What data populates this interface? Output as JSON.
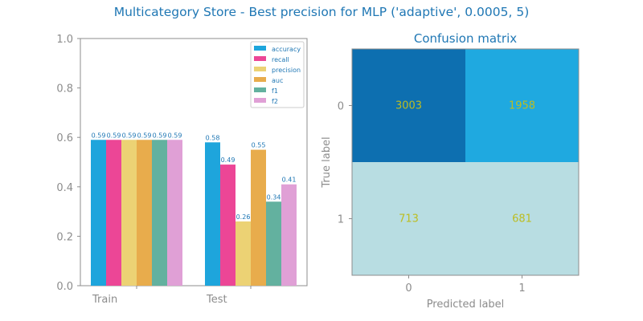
{
  "figure_title": "Multicategory Store - Best precision for MLP ('adaptive', 0.0005, 5)",
  "chart_data": [
    {
      "type": "bar",
      "categories": [
        "Train",
        "Test"
      ],
      "series": [
        {
          "name": "accuracy",
          "values": [
            0.59,
            0.58
          ],
          "labels": [
            "0.59",
            "0.58"
          ],
          "color": "#1ea5dc"
        },
        {
          "name": "recall",
          "values": [
            0.59,
            0.49
          ],
          "labels": [
            "0.59",
            "0.49"
          ],
          "color": "#ec4696"
        },
        {
          "name": "precision",
          "values": [
            0.59,
            0.26
          ],
          "labels": [
            "0.59",
            "0.26"
          ],
          "color": "#ecd274"
        },
        {
          "name": "auc",
          "values": [
            0.59,
            0.55
          ],
          "labels": [
            "0.59",
            "0.55"
          ],
          "color": "#e8ac4c"
        },
        {
          "name": "f1",
          "values": [
            0.59,
            0.34
          ],
          "labels": [
            "0.59",
            "0.34"
          ],
          "color": "#63b19f"
        },
        {
          "name": "f2",
          "values": [
            0.59,
            0.41
          ],
          "labels": [
            "0.59",
            "0.41"
          ],
          "color": "#e0a0d6"
        }
      ],
      "ylim": [
        0,
        1.0
      ],
      "yticks": [
        "0.0",
        "0.2",
        "0.4",
        "0.6",
        "0.8",
        "1.0"
      ],
      "legend_position": "top-right",
      "grid": false
    },
    {
      "type": "heatmap",
      "title": "Confusion matrix",
      "xlabel": "Predicted label",
      "ylabel": "True label",
      "x_ticks": [
        "0",
        "1"
      ],
      "y_ticks": [
        "0",
        "1"
      ],
      "matrix": [
        [
          3003,
          1958
        ],
        [
          713,
          681
        ]
      ],
      "matrix_labels": [
        [
          "3003",
          "1958"
        ],
        [
          "713",
          "681"
        ]
      ],
      "cell_colors": [
        [
          "#0d6fb0",
          "#1fa9e0"
        ],
        [
          "#b8dde2",
          "#b8dde2"
        ]
      ],
      "value_color": "#bcbd22"
    }
  ]
}
